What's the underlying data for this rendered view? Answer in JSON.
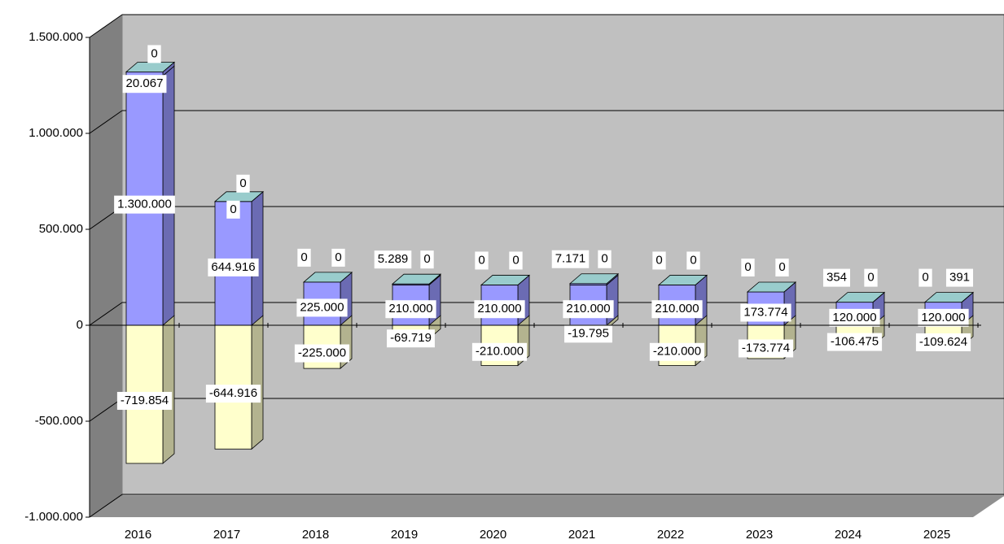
{
  "chart_data": {
    "type": "bar3d_stacked",
    "categories": [
      "2016",
      "2017",
      "2018",
      "2019",
      "2020",
      "2021",
      "2022",
      "2023",
      "2024",
      "2025"
    ],
    "series": [
      {
        "color": "#9999ff",
        "values": [
          1300000,
          644916,
          225000,
          210000,
          210000,
          210000,
          210000,
          173774,
          120000,
          120000
        ],
        "value_labels": [
          "1.300.000",
          "644.916",
          "225.000",
          "210.000",
          "210.000",
          "210.000",
          "210.000",
          "173.774",
          "120.000",
          "120.000"
        ]
      },
      {
        "color": "#9999ff",
        "values": [
          20067,
          0,
          0,
          5289,
          0,
          7171,
          0,
          0,
          354,
          0
        ],
        "value_labels": [
          "20.067",
          "0",
          "0",
          "5.289",
          "0",
          "7.171",
          "0",
          "0",
          "354",
          "0"
        ]
      },
      {
        "color": "#99cccc",
        "values": [
          0,
          0,
          0,
          0,
          0,
          0,
          0,
          0,
          0,
          391
        ],
        "value_labels": [
          "0",
          "0",
          "0",
          "0",
          "0",
          "0",
          "0",
          "0",
          "0",
          "391"
        ]
      },
      {
        "color": "#ffffcc",
        "values": [
          -719854,
          -644916,
          -225000,
          -69719,
          -210000,
          -19795,
          -210000,
          -173774,
          -106475,
          -109624
        ],
        "value_labels": [
          "-719.854",
          "-644.916",
          "-225.000",
          "-69.719",
          "-210.000",
          "-19.795",
          "-210.000",
          "-173.774",
          "-106.475",
          "-109.624"
        ]
      }
    ],
    "ylim": [
      -1000000,
      1500000
    ],
    "yticks": [
      {
        "value": -1000000,
        "label": "-1.000.000"
      },
      {
        "value": -500000,
        "label": "-500.000"
      },
      0,
      {
        "value": 500000,
        "label": "500.000"
      },
      {
        "value": 1000000,
        "label": "1.000.000"
      },
      {
        "value": 1500000,
        "label": "1.500.000"
      }
    ],
    "grid": true
  }
}
